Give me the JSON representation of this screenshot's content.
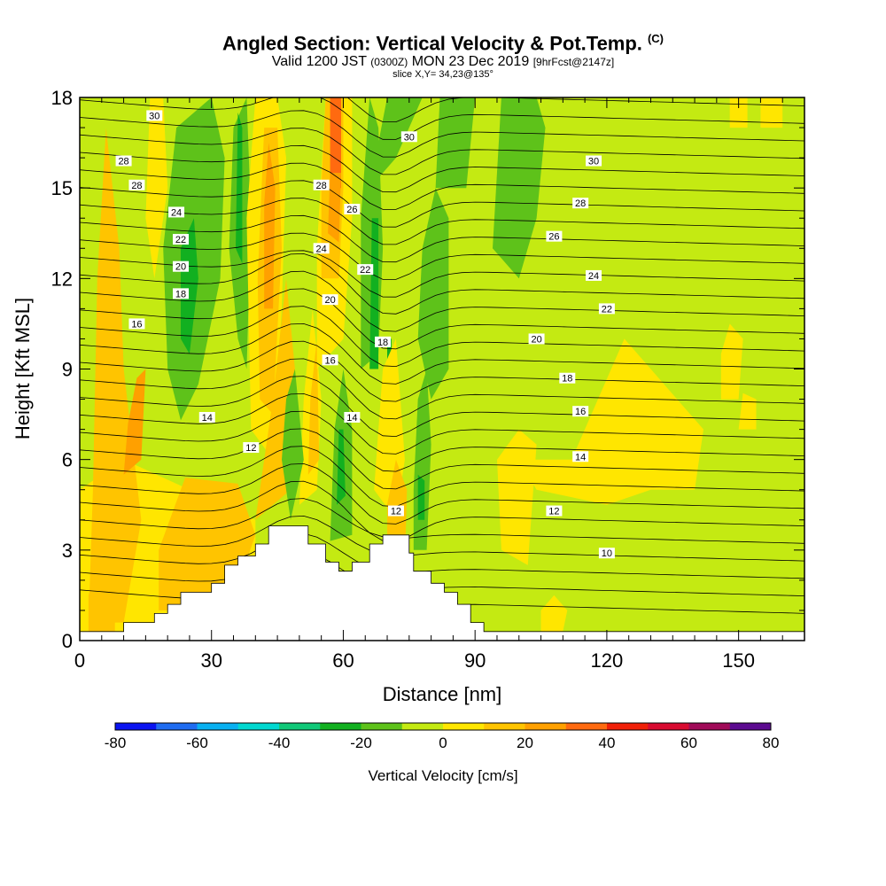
{
  "title": {
    "main": "Angled Section: Vertical Velocity & Pot.Temp.",
    "copyright": "(C)",
    "valid_prefix": "Valid 1200 JST",
    "utc": "(0300Z)",
    "date": "MON 23 Dec 2019",
    "forecast": "[9hrFcst@2147z]",
    "slice": "slice X,Y= 34,23@135°"
  },
  "chart_data": {
    "type": "heatmap",
    "xlabel": "Distance [nm]",
    "ylabel": "Height [Kft MSL]",
    "xlim": [
      0,
      165
    ],
    "ylim": [
      0,
      18
    ],
    "x_ticks": [
      0,
      30,
      60,
      90,
      120,
      150
    ],
    "y_ticks": [
      0,
      3,
      6,
      9,
      12,
      15,
      18
    ],
    "colorbar": {
      "label": "Vertical Velocity [cm/s]",
      "ticks": [
        -80,
        -60,
        -40,
        -20,
        0,
        20,
        40,
        60,
        80
      ],
      "levels": [
        -80,
        -70,
        -60,
        -50,
        -40,
        -30,
        -20,
        -10,
        0,
        10,
        20,
        30,
        40,
        50,
        60,
        70,
        80
      ],
      "colors": [
        "#0a14f0",
        "#1f6cf0",
        "#08b0f0",
        "#00d8d0",
        "#10c878",
        "#12b020",
        "#5ec21a",
        "#c4ea12",
        "#ffe600",
        "#ffc400",
        "#ffa000",
        "#ff6a10",
        "#f02008",
        "#d80a30",
        "#a00a58",
        "#5c0a90"
      ]
    },
    "terrain": [
      [
        0,
        0.3
      ],
      [
        10,
        0.3
      ],
      [
        10,
        0.6
      ],
      [
        17,
        0.6
      ],
      [
        17,
        0.9
      ],
      [
        20,
        0.9
      ],
      [
        20,
        1.2
      ],
      [
        23,
        1.2
      ],
      [
        23,
        1.6
      ],
      [
        30,
        1.6
      ],
      [
        30,
        1.9
      ],
      [
        33,
        1.9
      ],
      [
        33,
        2.5
      ],
      [
        36,
        2.5
      ],
      [
        36,
        2.8
      ],
      [
        40,
        2.8
      ],
      [
        40,
        3.2
      ],
      [
        43,
        3.2
      ],
      [
        43,
        3.8
      ],
      [
        52,
        3.8
      ],
      [
        52,
        3.2
      ],
      [
        56,
        3.2
      ],
      [
        56,
        2.6
      ],
      [
        59,
        2.6
      ],
      [
        59,
        2.3
      ],
      [
        62,
        2.3
      ],
      [
        62,
        2.6
      ],
      [
        66,
        2.6
      ],
      [
        66,
        3.2
      ],
      [
        69,
        3.2
      ],
      [
        69,
        3.5
      ],
      [
        75,
        3.5
      ],
      [
        75,
        2.9
      ],
      [
        76,
        2.9
      ],
      [
        76,
        2.3
      ],
      [
        80,
        2.3
      ],
      [
        80,
        1.9
      ],
      [
        83,
        1.9
      ],
      [
        83,
        1.6
      ],
      [
        86,
        1.6
      ],
      [
        86,
        1.2
      ],
      [
        89,
        1.2
      ],
      [
        89,
        0.6
      ],
      [
        92,
        0.6
      ],
      [
        92,
        0.3
      ],
      [
        165,
        0.3
      ]
    ],
    "theta_contours": {
      "levels": [
        30,
        28,
        26,
        24,
        22,
        20,
        18,
        16,
        14,
        12,
        10
      ],
      "labels": [
        {
          "text": "30",
          "x": 17,
          "y": 17.4
        },
        {
          "text": "28",
          "x": 10,
          "y": 15.9
        },
        {
          "text": "28",
          "x": 13,
          "y": 15.1
        },
        {
          "text": "24",
          "x": 22,
          "y": 14.2
        },
        {
          "text": "22",
          "x": 23,
          "y": 13.3
        },
        {
          "text": "20",
          "x": 23,
          "y": 12.4
        },
        {
          "text": "18",
          "x": 23,
          "y": 11.5
        },
        {
          "text": "16",
          "x": 13,
          "y": 10.5
        },
        {
          "text": "14",
          "x": 29,
          "y": 7.4
        },
        {
          "text": "12",
          "x": 39,
          "y": 6.4
        },
        {
          "text": "28",
          "x": 55,
          "y": 15.1
        },
        {
          "text": "26",
          "x": 62,
          "y": 14.3
        },
        {
          "text": "24",
          "x": 55,
          "y": 13.0
        },
        {
          "text": "22",
          "x": 65,
          "y": 12.3
        },
        {
          "text": "20",
          "x": 57,
          "y": 11.3
        },
        {
          "text": "18",
          "x": 69,
          "y": 9.9
        },
        {
          "text": "16",
          "x": 57,
          "y": 9.3
        },
        {
          "text": "14",
          "x": 62,
          "y": 7.4
        },
        {
          "text": "12",
          "x": 72,
          "y": 4.3
        },
        {
          "text": "30",
          "x": 75,
          "y": 16.7
        },
        {
          "text": "30",
          "x": 117,
          "y": 15.9
        },
        {
          "text": "28",
          "x": 114,
          "y": 14.5
        },
        {
          "text": "26",
          "x": 108,
          "y": 13.4
        },
        {
          "text": "24",
          "x": 117,
          "y": 12.1
        },
        {
          "text": "22",
          "x": 120,
          "y": 11.0
        },
        {
          "text": "20",
          "x": 104,
          "y": 10.0
        },
        {
          "text": "18",
          "x": 111,
          "y": 8.7
        },
        {
          "text": "16",
          "x": 114,
          "y": 7.6
        },
        {
          "text": "14",
          "x": 114,
          "y": 6.1
        },
        {
          "text": "12",
          "x": 108,
          "y": 4.3
        },
        {
          "text": "10",
          "x": 120,
          "y": 2.9
        }
      ]
    }
  }
}
